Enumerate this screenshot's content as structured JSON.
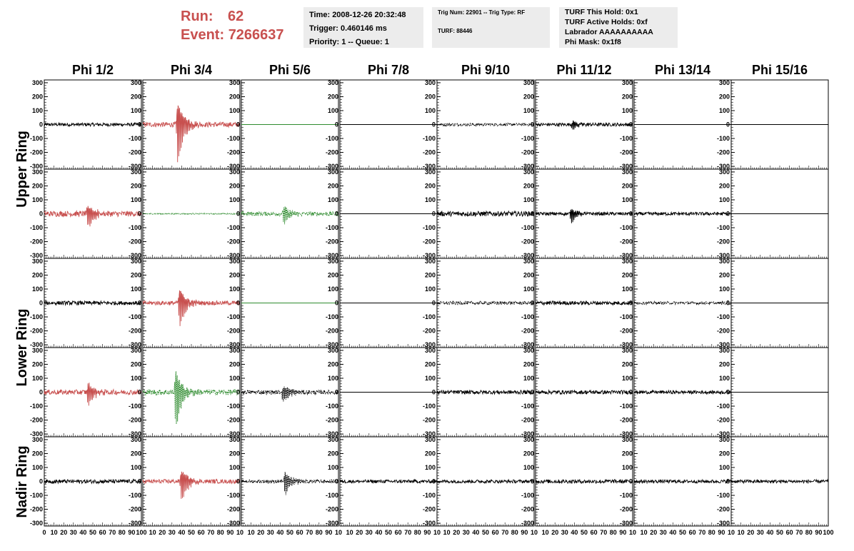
{
  "header": {
    "run_label": "Run:",
    "run_value": "62",
    "event_label": "Event:",
    "event_value": "7266637",
    "time": "Time: 2008-12-26 20:32:48",
    "trigger": "Trigger: 0.460146 ms",
    "priority": "Priority: 1 -- Queue: 1",
    "trig_num": "Trig Num: 22901 -- Trig Type: RF",
    "turf": "TURF: 88446",
    "turf_hold": "TURF This Hold: 0x1",
    "turf_active": "TURF Active Holds: 0xf",
    "labrador": "Labrador AAAAAAAAAA",
    "phi_mask": "Phi Mask: 0x1f8"
  },
  "colors": {
    "red": "#c8504f",
    "green": "#2e8b2e",
    "black": "#000000",
    "info_bg": "#ececec"
  },
  "chart_data": {
    "type": "line",
    "columns": [
      "Phi 1/2",
      "Phi 3/4",
      "Phi 5/6",
      "Phi 7/8",
      "Phi 9/10",
      "Phi 11/12",
      "Phi 13/14",
      "Phi 15/16"
    ],
    "row_groups": [
      "Upper Ring",
      "Lower Ring",
      "Nadir Ring"
    ],
    "xlim": [
      0,
      100
    ],
    "ylim": [
      -320,
      320
    ],
    "y_ticks": [
      300,
      200,
      100,
      0,
      -100,
      -200,
      -300
    ],
    "x_tick_labels_first": [
      "0",
      "10",
      "20",
      "30",
      "40",
      "50",
      "60",
      "70",
      "80",
      "90",
      "100"
    ],
    "x_tick_labels": [
      "10",
      "20",
      "30",
      "40",
      "50",
      "60",
      "70",
      "80",
      "90",
      "10"
    ],
    "x_tick_labels_last": [
      "10",
      "20",
      "30",
      "40",
      "50",
      "60",
      "70",
      "80",
      "90",
      "100"
    ],
    "panels": [
      [
        {
          "color": "black",
          "style": "solid",
          "amp": 12,
          "burst": 0,
          "center": 50
        },
        {
          "color": "red",
          "style": "solid",
          "amp": 18,
          "burst": 280,
          "center": 36
        },
        {
          "color": "green",
          "style": "solid",
          "amp": 0,
          "burst": 0,
          "center": 50
        },
        {
          "color": "black",
          "style": "flat",
          "amp": 0,
          "burst": 0,
          "center": 50
        },
        {
          "color": "black",
          "style": "dashed",
          "amp": 10,
          "burst": 0,
          "center": 50
        },
        {
          "color": "black",
          "style": "solid",
          "amp": 12,
          "burst": 40,
          "center": 38
        },
        {
          "color": "black",
          "style": "flat",
          "amp": 0,
          "burst": 0,
          "center": 50
        },
        {
          "color": "black",
          "style": "flat",
          "amp": 0,
          "burst": 0,
          "center": 50
        }
      ],
      [
        {
          "color": "red",
          "style": "solid",
          "amp": 20,
          "burst": 110,
          "center": 45
        },
        {
          "color": "green",
          "style": "dashed",
          "amp": 4,
          "burst": 0,
          "center": 50
        },
        {
          "color": "green",
          "style": "dashed",
          "amp": 15,
          "burst": 80,
          "center": 44
        },
        {
          "color": "black",
          "style": "flat",
          "amp": 0,
          "burst": 0,
          "center": 50
        },
        {
          "color": "black",
          "style": "solid",
          "amp": 18,
          "burst": 0,
          "center": 50
        },
        {
          "color": "black",
          "style": "solid",
          "amp": 12,
          "burst": 60,
          "center": 37
        },
        {
          "color": "black",
          "style": "solid",
          "amp": 12,
          "burst": 0,
          "center": 50
        },
        {
          "color": "black",
          "style": "flat",
          "amp": 0,
          "burst": 0,
          "center": 50
        }
      ],
      [
        {
          "color": "black",
          "style": "solid",
          "amp": 14,
          "burst": 0,
          "center": 50
        },
        {
          "color": "red",
          "style": "solid",
          "amp": 15,
          "burst": 170,
          "center": 38
        },
        {
          "color": "green",
          "style": "solid",
          "amp": 0,
          "burst": 0,
          "center": 50
        },
        {
          "color": "black",
          "style": "flat",
          "amp": 0,
          "burst": 0,
          "center": 50
        },
        {
          "color": "black",
          "style": "dashed",
          "amp": 12,
          "burst": 0,
          "center": 50
        },
        {
          "color": "black",
          "style": "solid",
          "amp": 14,
          "burst": 0,
          "center": 50
        },
        {
          "color": "black",
          "style": "dashed",
          "amp": 10,
          "burst": 0,
          "center": 50
        },
        {
          "color": "black",
          "style": "flat",
          "amp": 0,
          "burst": 0,
          "center": 50
        }
      ],
      [
        {
          "color": "red",
          "style": "solid",
          "amp": 18,
          "burst": 110,
          "center": 45
        },
        {
          "color": "green",
          "style": "dashed",
          "amp": 20,
          "burst": 260,
          "center": 34
        },
        {
          "color": "black",
          "style": "dashed",
          "amp": 15,
          "burst": 80,
          "center": 43
        },
        {
          "color": "black",
          "style": "flat",
          "amp": 0,
          "burst": 0,
          "center": 50
        },
        {
          "color": "black",
          "style": "solid",
          "amp": 14,
          "burst": 0,
          "center": 50
        },
        {
          "color": "black",
          "style": "solid",
          "amp": 14,
          "burst": 0,
          "center": 50
        },
        {
          "color": "black",
          "style": "solid",
          "amp": 12,
          "burst": 0,
          "center": 50
        },
        {
          "color": "black",
          "style": "flat",
          "amp": 0,
          "burst": 0,
          "center": 50
        }
      ],
      [
        {
          "color": "black",
          "style": "solid",
          "amp": 14,
          "burst": 0,
          "center": 50
        },
        {
          "color": "red",
          "style": "solid",
          "amp": 15,
          "burst": 150,
          "center": 40
        },
        {
          "color": "black",
          "style": "dashed",
          "amp": 12,
          "burst": 100,
          "center": 45
        },
        {
          "color": "black",
          "style": "solid",
          "amp": 12,
          "burst": 0,
          "center": 50
        },
        {
          "color": "black",
          "style": "solid",
          "amp": 12,
          "burst": 0,
          "center": 50
        },
        {
          "color": "black",
          "style": "solid",
          "amp": 14,
          "burst": 0,
          "center": 50
        },
        {
          "color": "black",
          "style": "solid",
          "amp": 12,
          "burst": 0,
          "center": 50
        },
        {
          "color": "black",
          "style": "solid",
          "amp": 12,
          "burst": 0,
          "center": 50
        }
      ]
    ]
  }
}
